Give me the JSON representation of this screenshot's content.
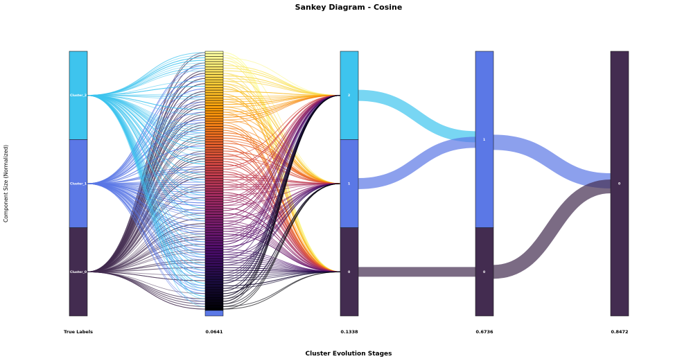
{
  "title": "Sankey Diagram - Cosine",
  "xlabel": "Cluster Evolution Stages",
  "ylabel": "Component Size (Normalized)",
  "chart_data": {
    "type": "sankey",
    "title": "Sankey Diagram - Cosine",
    "xlabel": "Cluster Evolution Stages",
    "ylabel": "Component Size (Normalized)",
    "stages": [
      "True Labels",
      "0.0641",
      "0.1338",
      "0.6736",
      "0.8472"
    ],
    "colors": {
      "cluster_2": "#3ec4ee",
      "cluster_1": "#5b78e6",
      "cluster_0": "#432c50",
      "fine_start": "#fbe978",
      "fine_end": "#080414"
    },
    "nodes": [
      {
        "stage": 0,
        "label": "Cluster_2",
        "size": 1,
        "color": "#3ec4ee"
      },
      {
        "stage": 0,
        "label": "Cluster_1",
        "size": 1,
        "color": "#5b78e6"
      },
      {
        "stage": 0,
        "label": "Cluster_0",
        "size": 1,
        "color": "#432c50"
      },
      {
        "stage": 1,
        "label": "",
        "size": 3,
        "segments": 100,
        "color_scale": "inferno"
      },
      {
        "stage": 2,
        "label": "2",
        "size": 1,
        "color": "#3ec4ee"
      },
      {
        "stage": 2,
        "label": "1",
        "size": 1,
        "color": "#5b78e6"
      },
      {
        "stage": 2,
        "label": "0",
        "size": 1,
        "color": "#432c50"
      },
      {
        "stage": 3,
        "label": "1",
        "size": 2,
        "color": "#5b78e6"
      },
      {
        "stage": 3,
        "label": "0",
        "size": 1,
        "color": "#432c50"
      },
      {
        "stage": 4,
        "label": "0",
        "size": 3,
        "color": "#432c50"
      }
    ],
    "links": [
      {
        "from": "2 (0.1338)",
        "to": "1 (0.6736)",
        "color": "#3ec4ee"
      },
      {
        "from": "1 (0.1338)",
        "to": "1 (0.6736)",
        "color": "#5b78e6"
      },
      {
        "from": "0 (0.1338)",
        "to": "0 (0.6736)",
        "color": "#432c50"
      },
      {
        "from": "1 (0.6736)",
        "to": "0 (0.8472)",
        "color": "#5b78e6"
      },
      {
        "from": "0 (0.6736)",
        "to": "0 (0.8472)",
        "color": "#432c50"
      }
    ]
  }
}
